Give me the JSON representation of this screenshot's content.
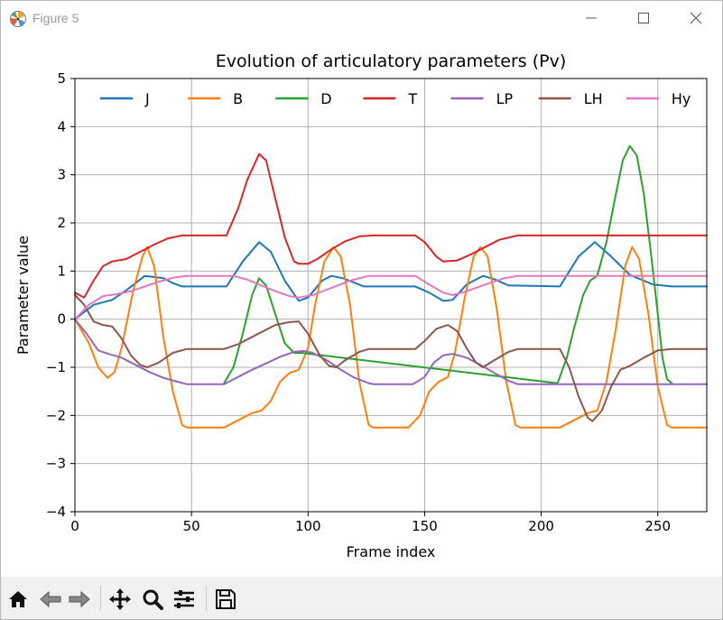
{
  "window": {
    "title": "Figure 5",
    "app_icon": "matplotlib-icon",
    "controls": [
      {
        "name": "minimize-button",
        "icon": "minimize-icon"
      },
      {
        "name": "maximize-button",
        "icon": "maximize-icon"
      },
      {
        "name": "close-button",
        "icon": "close-icon"
      }
    ]
  },
  "toolbar": {
    "buttons": [
      {
        "name": "home-button",
        "icon": "home-icon"
      },
      {
        "name": "back-button",
        "icon": "back-arrow-icon"
      },
      {
        "name": "forward-button",
        "icon": "forward-arrow-icon"
      },
      {
        "name": "pan-button",
        "icon": "move-icon"
      },
      {
        "name": "zoom-button",
        "icon": "magnifier-icon"
      },
      {
        "name": "configure-subplots-button",
        "icon": "sliders-icon"
      },
      {
        "name": "save-button",
        "icon": "floppy-disk-icon"
      }
    ],
    "background": "#f0f0f0"
  },
  "chart_data": {
    "type": "line",
    "title": "Evolution of articulatory parameters (Pv)",
    "xlabel": "Frame index",
    "ylabel": "Parameter value",
    "xlim": [
      0,
      271
    ],
    "ylim": [
      -4,
      5
    ],
    "xticks": [
      0,
      50,
      100,
      150,
      200,
      250
    ],
    "yticks": [
      -4,
      -3,
      -2,
      -1,
      0,
      1,
      2,
      3,
      4,
      5
    ],
    "xgrid_at": [
      50,
      100,
      150,
      200,
      250
    ],
    "ygrid_at": [
      -3,
      -2,
      -1,
      0,
      1,
      2,
      3,
      4
    ],
    "grid": true,
    "legend": {
      "placement": "top",
      "columns": 7
    },
    "series": [
      {
        "name": "J",
        "color": "#1f77b4",
        "points": [
          [
            0,
            0
          ],
          [
            8,
            0.3
          ],
          [
            16,
            0.4
          ],
          [
            22,
            0.6
          ],
          [
            30,
            0.9
          ],
          [
            38,
            0.85
          ],
          [
            42,
            0.75
          ],
          [
            46,
            0.68
          ],
          [
            65,
            0.68
          ],
          [
            72,
            1.2
          ],
          [
            79,
            1.6
          ],
          [
            84,
            1.4
          ],
          [
            90,
            0.8
          ],
          [
            96,
            0.38
          ],
          [
            100,
            0.45
          ],
          [
            106,
            0.8
          ],
          [
            110,
            0.9
          ],
          [
            115,
            0.85
          ],
          [
            124,
            0.68
          ],
          [
            146,
            0.68
          ],
          [
            152,
            0.55
          ],
          [
            158,
            0.38
          ],
          [
            162,
            0.4
          ],
          [
            168,
            0.72
          ],
          [
            175,
            0.9
          ],
          [
            180,
            0.83
          ],
          [
            186,
            0.7
          ],
          [
            208,
            0.68
          ],
          [
            216,
            1.3
          ],
          [
            223,
            1.6
          ],
          [
            230,
            1.3
          ],
          [
            238,
            0.92
          ],
          [
            248,
            0.72
          ],
          [
            256,
            0.68
          ],
          [
            271,
            0.68
          ]
        ]
      },
      {
        "name": "B",
        "color": "#ff7f0e",
        "points": [
          [
            0,
            0
          ],
          [
            6,
            -0.5
          ],
          [
            10,
            -1.0
          ],
          [
            14,
            -1.22
          ],
          [
            17,
            -1.1
          ],
          [
            20,
            -0.6
          ],
          [
            25,
            0.6
          ],
          [
            29,
            1.3
          ],
          [
            31,
            1.5
          ],
          [
            34,
            1.1
          ],
          [
            38,
            -0.4
          ],
          [
            42,
            -1.5
          ],
          [
            46,
            -2.2
          ],
          [
            48,
            -2.25
          ],
          [
            64,
            -2.25
          ],
          [
            70,
            -2.1
          ],
          [
            76,
            -1.95
          ],
          [
            80,
            -1.9
          ],
          [
            84,
            -1.7
          ],
          [
            88,
            -1.3
          ],
          [
            92,
            -1.12
          ],
          [
            96,
            -1.05
          ],
          [
            100,
            -0.6
          ],
          [
            103,
            0.3
          ],
          [
            107,
            1.2
          ],
          [
            111,
            1.5
          ],
          [
            114,
            1.3
          ],
          [
            118,
            0.3
          ],
          [
            122,
            -1.3
          ],
          [
            126,
            -2.2
          ],
          [
            128,
            -2.25
          ],
          [
            143,
            -2.25
          ],
          [
            148,
            -2.0
          ],
          [
            152,
            -1.5
          ],
          [
            156,
            -1.3
          ],
          [
            160,
            -1.2
          ],
          [
            163,
            -0.7
          ],
          [
            167,
            0.4
          ],
          [
            171,
            1.3
          ],
          [
            174,
            1.5
          ],
          [
            177,
            1.3
          ],
          [
            181,
            0.2
          ],
          [
            185,
            -1.3
          ],
          [
            189,
            -2.2
          ],
          [
            191,
            -2.25
          ],
          [
            208,
            -2.25
          ],
          [
            214,
            -2.1
          ],
          [
            220,
            -1.95
          ],
          [
            224,
            -1.9
          ],
          [
            228,
            -1.3
          ],
          [
            232,
            -0.2
          ],
          [
            236,
            1.1
          ],
          [
            239,
            1.5
          ],
          [
            242,
            1.25
          ],
          [
            246,
            0.1
          ],
          [
            250,
            -1.4
          ],
          [
            254,
            -2.2
          ],
          [
            256,
            -2.25
          ],
          [
            271,
            -2.25
          ]
        ]
      },
      {
        "name": "D",
        "color": "#2ca02c",
        "points": [
          [
            64,
            -1.33
          ],
          [
            68,
            -1.0
          ],
          [
            72,
            -0.3
          ],
          [
            76,
            0.5
          ],
          [
            79,
            0.85
          ],
          [
            82,
            0.7
          ],
          [
            86,
            0.1
          ],
          [
            90,
            -0.5
          ],
          [
            94,
            -0.7
          ],
          [
            97,
            -0.7
          ],
          [
            207,
            -1.33
          ],
          [
            211,
            -0.8
          ],
          [
            214,
            -0.2
          ],
          [
            218,
            0.5
          ],
          [
            221,
            0.8
          ],
          [
            224,
            0.9
          ],
          [
            228,
            1.6
          ],
          [
            232,
            2.6
          ],
          [
            235,
            3.3
          ],
          [
            238,
            3.6
          ],
          [
            241,
            3.4
          ],
          [
            244,
            2.6
          ],
          [
            247,
            1.4
          ],
          [
            250,
            0.1
          ],
          [
            252,
            -0.8
          ],
          [
            254,
            -1.25
          ],
          [
            256,
            -1.33
          ]
        ]
      },
      {
        "name": "T",
        "color": "#d62728",
        "points": [
          [
            0,
            0.55
          ],
          [
            4,
            0.45
          ],
          [
            8,
            0.8
          ],
          [
            12,
            1.1
          ],
          [
            16,
            1.2
          ],
          [
            22,
            1.25
          ],
          [
            28,
            1.4
          ],
          [
            34,
            1.55
          ],
          [
            40,
            1.68
          ],
          [
            46,
            1.74
          ],
          [
            65,
            1.74
          ],
          [
            70,
            2.3
          ],
          [
            74,
            2.9
          ],
          [
            79,
            3.43
          ],
          [
            82,
            3.3
          ],
          [
            86,
            2.5
          ],
          [
            90,
            1.7
          ],
          [
            94,
            1.2
          ],
          [
            96,
            1.15
          ],
          [
            100,
            1.15
          ],
          [
            104,
            1.25
          ],
          [
            110,
            1.45
          ],
          [
            116,
            1.62
          ],
          [
            122,
            1.72
          ],
          [
            128,
            1.74
          ],
          [
            146,
            1.74
          ],
          [
            150,
            1.6
          ],
          [
            155,
            1.3
          ],
          [
            158,
            1.2
          ],
          [
            164,
            1.22
          ],
          [
            170,
            1.35
          ],
          [
            176,
            1.5
          ],
          [
            182,
            1.65
          ],
          [
            190,
            1.74
          ],
          [
            271,
            1.74
          ]
        ]
      },
      {
        "name": "LP",
        "color": "#9467bd",
        "points": [
          [
            0,
            0
          ],
          [
            5,
            -0.3
          ],
          [
            10,
            -0.65
          ],
          [
            15,
            -0.73
          ],
          [
            20,
            -0.8
          ],
          [
            26,
            -0.95
          ],
          [
            32,
            -1.1
          ],
          [
            38,
            -1.22
          ],
          [
            44,
            -1.3
          ],
          [
            48,
            -1.35
          ],
          [
            64,
            -1.35
          ],
          [
            70,
            -1.2
          ],
          [
            76,
            -1.05
          ],
          [
            82,
            -0.92
          ],
          [
            88,
            -0.78
          ],
          [
            94,
            -0.68
          ],
          [
            98,
            -0.66
          ],
          [
            102,
            -0.7
          ],
          [
            108,
            -0.85
          ],
          [
            114,
            -1.05
          ],
          [
            120,
            -1.22
          ],
          [
            126,
            -1.33
          ],
          [
            128,
            -1.35
          ],
          [
            145,
            -1.35
          ],
          [
            150,
            -1.2
          ],
          [
            154,
            -0.9
          ],
          [
            158,
            -0.75
          ],
          [
            162,
            -0.72
          ],
          [
            168,
            -0.8
          ],
          [
            174,
            -0.95
          ],
          [
            180,
            -1.12
          ],
          [
            186,
            -1.28
          ],
          [
            190,
            -1.35
          ],
          [
            271,
            -1.35
          ]
        ]
      },
      {
        "name": "LH",
        "color": "#8c564b",
        "points": [
          [
            0,
            0.5
          ],
          [
            4,
            0.3
          ],
          [
            8,
            -0.05
          ],
          [
            12,
            -0.12
          ],
          [
            16,
            -0.15
          ],
          [
            20,
            -0.4
          ],
          [
            24,
            -0.75
          ],
          [
            28,
            -0.95
          ],
          [
            31,
            -1.0
          ],
          [
            36,
            -0.9
          ],
          [
            42,
            -0.7
          ],
          [
            48,
            -0.62
          ],
          [
            64,
            -0.62
          ],
          [
            70,
            -0.52
          ],
          [
            78,
            -0.32
          ],
          [
            86,
            -0.12
          ],
          [
            92,
            -0.06
          ],
          [
            96,
            -0.05
          ],
          [
            100,
            -0.3
          ],
          [
            105,
            -0.75
          ],
          [
            109,
            -0.97
          ],
          [
            112,
            -1.0
          ],
          [
            116,
            -0.85
          ],
          [
            122,
            -0.68
          ],
          [
            126,
            -0.62
          ],
          [
            146,
            -0.62
          ],
          [
            150,
            -0.45
          ],
          [
            155,
            -0.2
          ],
          [
            160,
            -0.12
          ],
          [
            164,
            -0.25
          ],
          [
            168,
            -0.6
          ],
          [
            172,
            -0.9
          ],
          [
            175,
            -1.0
          ],
          [
            180,
            -0.85
          ],
          [
            186,
            -0.68
          ],
          [
            190,
            -0.62
          ],
          [
            208,
            -0.62
          ],
          [
            212,
            -1.0
          ],
          [
            216,
            -1.6
          ],
          [
            220,
            -2.05
          ],
          [
            222,
            -2.12
          ],
          [
            226,
            -1.9
          ],
          [
            230,
            -1.4
          ],
          [
            234,
            -1.05
          ],
          [
            238,
            -0.97
          ],
          [
            244,
            -0.8
          ],
          [
            250,
            -0.65
          ],
          [
            256,
            -0.62
          ],
          [
            271,
            -0.62
          ]
        ]
      },
      {
        "name": "Hy",
        "color": "#e377c2",
        "points": [
          [
            0,
            0
          ],
          [
            6,
            0.3
          ],
          [
            12,
            0.48
          ],
          [
            18,
            0.52
          ],
          [
            24,
            0.58
          ],
          [
            30,
            0.68
          ],
          [
            36,
            0.78
          ],
          [
            42,
            0.86
          ],
          [
            48,
            0.9
          ],
          [
            68,
            0.9
          ],
          [
            74,
            0.82
          ],
          [
            80,
            0.7
          ],
          [
            86,
            0.58
          ],
          [
            92,
            0.48
          ],
          [
            96,
            0.45
          ],
          [
            102,
            0.5
          ],
          [
            110,
            0.65
          ],
          [
            118,
            0.8
          ],
          [
            126,
            0.9
          ],
          [
            146,
            0.9
          ],
          [
            152,
            0.72
          ],
          [
            158,
            0.55
          ],
          [
            162,
            0.5
          ],
          [
            168,
            0.58
          ],
          [
            176,
            0.72
          ],
          [
            184,
            0.85
          ],
          [
            190,
            0.9
          ],
          [
            271,
            0.9
          ]
        ]
      }
    ]
  }
}
